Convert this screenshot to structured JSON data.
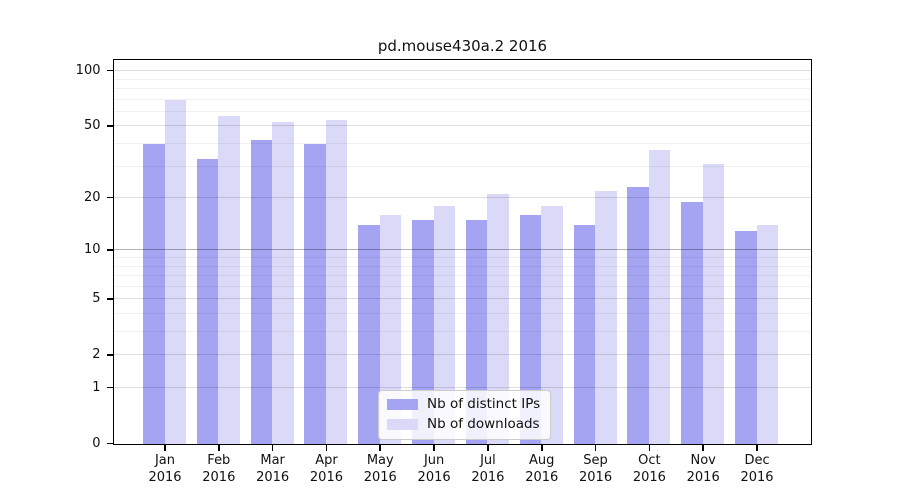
{
  "title": "pd.mouse430a.2 2016",
  "chart_data": {
    "type": "bar",
    "title": "pd.mouse430a.2 2016",
    "categories": [
      "Jan",
      "Feb",
      "Mar",
      "Apr",
      "May",
      "Jun",
      "Jul",
      "Aug",
      "Sep",
      "Oct",
      "Nov",
      "Dec"
    ],
    "year_label": "2016",
    "series": [
      {
        "name": "Nb of distinct IPs",
        "color": "#a4a4f2",
        "values": [
          40,
          33,
          42,
          40,
          14,
          15,
          15,
          16,
          14,
          23,
          19,
          13
        ]
      },
      {
        "name": "Nb of downloads",
        "color": "#dadaf8",
        "values": [
          70,
          57,
          53,
          54,
          16,
          18,
          21,
          18,
          22,
          37,
          31,
          14
        ]
      }
    ],
    "xlabel": "",
    "ylabel": "",
    "y_scale": "log1p",
    "ylim": [
      0,
      115
    ],
    "y_major_ticks": [
      0,
      1,
      2,
      5,
      10,
      20,
      50,
      100
    ],
    "y_tick_labels": [
      "0",
      "1",
      "2",
      "5",
      "10",
      "20",
      "50",
      "100"
    ],
    "y_minor_gridlines": [
      3,
      4,
      6,
      7,
      8,
      9,
      30,
      40,
      60,
      70,
      80,
      90
    ],
    "emphasized_gridlines": [
      10
    ],
    "grid": true,
    "legend_position": "lower center"
  },
  "legend": {
    "items": [
      {
        "label": "Nb of distinct IPs"
      },
      {
        "label": "Nb of downloads"
      }
    ]
  }
}
